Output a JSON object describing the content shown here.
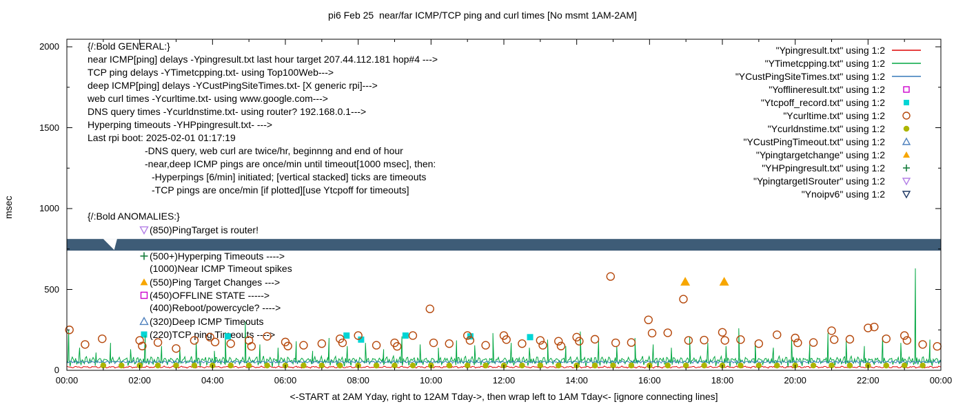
{
  "chart": {
    "title": "pi6 Feb 25  near/far ICMP/TCP ping and curl times [No msmt 1AM-2AM]",
    "ylabel": "msec",
    "xcaption": "<-START at 2AM Yday, right to 12AM Tday->, then wrap left to 1AM Tday<- [ignore connecting lines]",
    "y_ticks": [
      "0",
      "500",
      "1000",
      "1500",
      "2000"
    ],
    "x_ticks": [
      "00:00",
      "02:00",
      "04:00",
      "06:00",
      "08:00",
      "10:00",
      "12:00",
      "14:00",
      "16:00",
      "18:00",
      "20:00",
      "22:00",
      "00:00"
    ]
  },
  "legend": {
    "entries": [
      {
        "label": "\"Ypingresult.txt\" using 1:2",
        "marker": "line",
        "color": "#dd0000"
      },
      {
        "label": "\"YTimetcpping.txt\" using 1:2",
        "marker": "line",
        "color": "#00a640"
      },
      {
        "label": "\"YCustPingSiteTimes.txt\" using 1:2",
        "marker": "line",
        "color": "#3579b8"
      },
      {
        "label": "\"Yofflineresult.txt\" using 1:2",
        "marker": "square-open",
        "color": "#cc00cc"
      },
      {
        "label": "\"Ytcpoff_record.txt\" using 1:2",
        "marker": "square-filled",
        "color": "#00d5d5"
      },
      {
        "label": "\"Ycurltime.txt\" using 1:2",
        "marker": "circle-open",
        "color": "#b5470a"
      },
      {
        "label": "\"Ycurldnstime.txt\" using 1:2",
        "marker": "circle-filled",
        "color": "#adb500"
      },
      {
        "label": "\"YCustPingTimeout.txt\" using 1:2",
        "marker": "tri-up-open",
        "color": "#4f81bd"
      },
      {
        "label": "\"Ypingtargetchange\" using 1:2",
        "marker": "tri-up-filled",
        "color": "#f7a600"
      },
      {
        "label": "\"YHPpingresult.txt\" using 1:2",
        "marker": "plus",
        "color": "#157d3c"
      },
      {
        "label": "\"YpingtargetISrouter\" using 1:2",
        "marker": "tri-down-open",
        "color": "#b37fe6"
      },
      {
        "label": "\"Ynoipv6\" using 1:2",
        "marker": "tri-down-open",
        "color": "#1f3864"
      }
    ]
  },
  "annotations": {
    "general": [
      {
        "text": "{/:Bold GENERAL:}",
        "indent": 0
      },
      {
        "text": "near ICMP[ping] delays -Ypingresult.txt last hour target 207.44.112.181 hop#4 --->",
        "indent": 0
      },
      {
        "text": "TCP ping delays -YTimetcpping.txt- using Top100Web--->",
        "indent": 0
      },
      {
        "text": "deep ICMP[ping] delays -YCustPingSiteTimes.txt- [X generic rpi]--->",
        "indent": 0
      },
      {
        "text": "web curl times -Ycurltime.txt- using www.google.com--->",
        "indent": 0
      },
      {
        "text": "DNS query times -Ycurldnstime.txt- using router? 192.168.0.1--->",
        "indent": 0
      },
      {
        "text": "Hyperping timeouts -YHPpingresult.txt- --->",
        "indent": 0
      },
      {
        "text": "Last rpi boot: 2025-02-01 01:17:19",
        "indent": 0
      },
      {
        "text": "-DNS query, web curl are twice/hr, beginnng and end of hour",
        "indent": 1
      },
      {
        "text": "-near,deep ICMP pings are once/min until timeout[1000 msec], then:",
        "indent": 1
      },
      {
        "text": "-Hyperpings [6/min] initiated; [vertical stacked] ticks are timeouts",
        "indent": 2
      },
      {
        "text": "-TCP pings are once/min [if plotted][use Ytcpoff for timeouts]",
        "indent": 2
      }
    ],
    "anomalies_title": "{/:Bold ANOMALIES:}",
    "anomalies": [
      {
        "text": "(850)PingTarget is router!",
        "marker": "tri-down-open",
        "color": "#b37fe6",
        "row": 0
      },
      {
        "text": "(500+)Hyperping Timeouts ---->",
        "marker": "plus",
        "color": "#157d3c",
        "row": 2
      },
      {
        "text": "(1000)Near ICMP Timeout spikes",
        "marker": null,
        "color": null,
        "row": 3
      },
      {
        "text": "(550)Ping Target Changes --->",
        "marker": "tri-up-filled",
        "color": "#f7a600",
        "row": 4
      },
      {
        "text": "(450)OFFLINE STATE ----->",
        "marker": "square-open",
        "color": "#cc00cc",
        "row": 5
      },
      {
        "text": "(400)Reboot/powercycle? ---->",
        "marker": null,
        "color": null,
        "row": 6
      },
      {
        "text": "(320)Deep ICMP Timeouts",
        "marker": "tri-up-open",
        "color": "#4f81bd",
        "row": 7
      },
      {
        "text": "(220)TCP ping Timeouts ---->",
        "marker": "square-filled",
        "color": "#00d5d5",
        "row": 8
      }
    ]
  },
  "chart_data": {
    "type": "line",
    "title": "pi6 Feb 25  near/far ICMP/TCP ping and curl times [No msmt 1AM-2AM]",
    "xlabel": "<-START at 2AM Yday, right to 12AM Tday->, then wrap left to 1AM Tday<- [ignore connecting lines]",
    "ylabel": "msec",
    "x_unit": "hour-of-day (24h, wraps)",
    "xlim": [
      0,
      24
    ],
    "ylim": [
      0,
      2000
    ],
    "grid": false,
    "legend_position": "top-right",
    "series": [
      {
        "name": "Ypingresult",
        "style": "line",
        "color": "#dd0000",
        "baseline": 20,
        "noise": 7
      },
      {
        "name": "YTimetcpping",
        "style": "line",
        "color": "#00a640",
        "baseline": 45,
        "noise": 28,
        "jitter": true,
        "spikes": [
          [
            0.05,
            250
          ],
          [
            0.35,
            140
          ],
          [
            0.8,
            110
          ],
          [
            1.2,
            170
          ],
          [
            1.75,
            130
          ],
          [
            2.15,
            215
          ],
          [
            2.6,
            150
          ],
          [
            3.1,
            135
          ],
          [
            3.55,
            175
          ],
          [
            4.05,
            120
          ],
          [
            4.35,
            235
          ],
          [
            4.9,
            300
          ],
          [
            5.3,
            160
          ],
          [
            5.8,
            140
          ],
          [
            6.3,
            180
          ],
          [
            6.75,
            120
          ],
          [
            7.2,
            200
          ],
          [
            7.7,
            150
          ],
          [
            8.2,
            170
          ],
          [
            8.7,
            130
          ],
          [
            9.2,
            210
          ],
          [
            9.7,
            160
          ],
          [
            10.2,
            140
          ],
          [
            10.7,
            185
          ],
          [
            11.2,
            155
          ],
          [
            11.7,
            230
          ],
          [
            12.2,
            170
          ],
          [
            12.7,
            140
          ],
          [
            13.2,
            190
          ],
          [
            13.7,
            150
          ],
          [
            14.1,
            240
          ],
          [
            14.6,
            180
          ],
          [
            15.1,
            150
          ],
          [
            15.6,
            200
          ],
          [
            16.1,
            160
          ],
          [
            16.6,
            140
          ],
          [
            17.1,
            210
          ],
          [
            17.6,
            170
          ],
          [
            18.1,
            150
          ],
          [
            18.45,
            260
          ],
          [
            18.9,
            180
          ],
          [
            19.4,
            140
          ],
          [
            19.9,
            200
          ],
          [
            20.4,
            160
          ],
          [
            20.9,
            230
          ],
          [
            21.4,
            180
          ],
          [
            21.9,
            150
          ],
          [
            22.4,
            210
          ],
          [
            22.9,
            170
          ],
          [
            23.3,
            630
          ],
          [
            23.7,
            190
          ]
        ]
      },
      {
        "name": "YCustPingSiteTimes",
        "style": "line",
        "color": "#3579b8",
        "baseline": 52,
        "noise": 10
      },
      {
        "name": "Ytcpoff_record",
        "style": "square-filled",
        "color": "#00d5d5",
        "points": [
          [
            4.42,
            210
          ],
          [
            7.68,
            215
          ],
          [
            8.08,
            190
          ],
          [
            9.3,
            215
          ],
          [
            11.08,
            210
          ],
          [
            12.72,
            205
          ]
        ]
      },
      {
        "name": "Ycurltime",
        "style": "circle-open",
        "color": "#b5470a",
        "points": [
          [
            0.07,
            250
          ],
          [
            0.5,
            160
          ],
          [
            0.97,
            195
          ],
          [
            2.0,
            185
          ],
          [
            2.07,
            150
          ],
          [
            2.5,
            172
          ],
          [
            3.0,
            135
          ],
          [
            3.5,
            185
          ],
          [
            3.93,
            205
          ],
          [
            4.07,
            175
          ],
          [
            4.5,
            165
          ],
          [
            5.0,
            185
          ],
          [
            5.07,
            148
          ],
          [
            5.5,
            210
          ],
          [
            6.0,
            175
          ],
          [
            6.07,
            150
          ],
          [
            6.5,
            155
          ],
          [
            7.0,
            165
          ],
          [
            7.5,
            195
          ],
          [
            7.57,
            170
          ],
          [
            8.0,
            215
          ],
          [
            8.5,
            155
          ],
          [
            9.0,
            170
          ],
          [
            9.07,
            148
          ],
          [
            9.5,
            215
          ],
          [
            9.97,
            380
          ],
          [
            10.07,
            170
          ],
          [
            10.5,
            165
          ],
          [
            11.0,
            215
          ],
          [
            11.07,
            185
          ],
          [
            11.5,
            155
          ],
          [
            12.0,
            215
          ],
          [
            12.07,
            190
          ],
          [
            12.5,
            165
          ],
          [
            13.0,
            185
          ],
          [
            13.07,
            155
          ],
          [
            13.5,
            180
          ],
          [
            13.57,
            150
          ],
          [
            14.0,
            205
          ],
          [
            14.07,
            180
          ],
          [
            14.5,
            192
          ],
          [
            14.93,
            580
          ],
          [
            15.07,
            170
          ],
          [
            15.5,
            172
          ],
          [
            15.97,
            312
          ],
          [
            16.07,
            230
          ],
          [
            16.5,
            232
          ],
          [
            16.93,
            440
          ],
          [
            17.07,
            185
          ],
          [
            17.5,
            187
          ],
          [
            18.0,
            235
          ],
          [
            18.07,
            185
          ],
          [
            18.5,
            190
          ],
          [
            19.0,
            165
          ],
          [
            19.5,
            220
          ],
          [
            20.0,
            200
          ],
          [
            20.07,
            170
          ],
          [
            20.5,
            172
          ],
          [
            21.0,
            245
          ],
          [
            21.07,
            190
          ],
          [
            21.5,
            192
          ],
          [
            22.0,
            262
          ],
          [
            22.17,
            268
          ],
          [
            22.5,
            195
          ],
          [
            23.0,
            215
          ],
          [
            23.07,
            185
          ],
          [
            23.5,
            160
          ],
          [
            23.9,
            148
          ]
        ]
      },
      {
        "name": "Ycurldnstime",
        "style": "circle-filled",
        "color": "#adb500",
        "uniform": {
          "start": 1.0,
          "end": 23.5,
          "step": 0.5,
          "value": 30
        }
      },
      {
        "name": "Ypingtargetchange",
        "style": "tri-up-filled",
        "color": "#f7a600",
        "points": [
          [
            16.98,
            548
          ],
          [
            18.05,
            548
          ]
        ]
      },
      {
        "name": "Ynoipv6",
        "style": "band",
        "color": "#3e5c77",
        "y_from": 740,
        "y_to": 812,
        "x_from": 0,
        "x_to": 24,
        "note": "dense stacked tri-down markers rendered as a solid horizontal band ~775 msec"
      }
    ]
  }
}
